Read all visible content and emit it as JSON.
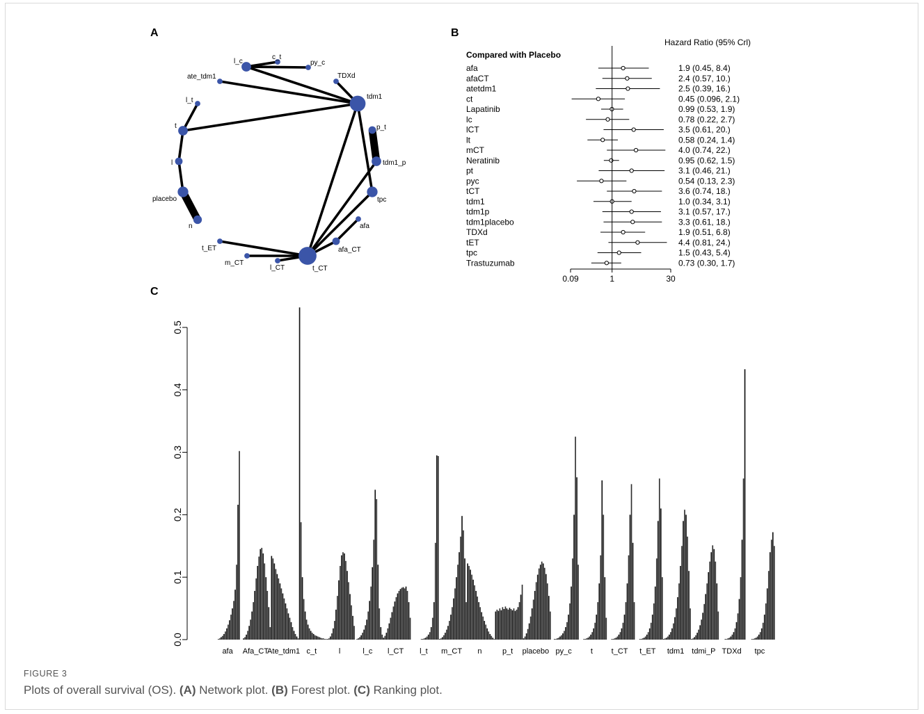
{
  "caption": {
    "figure_label": "FIGURE 3",
    "text_intro": "Plots of overall survival (OS). ",
    "parts": [
      {
        "label": "(A)",
        "text": " Network plot. "
      },
      {
        "label": "(B)",
        "text": " Forest plot. "
      },
      {
        "label": "(C)",
        "text": " Ranking plot."
      }
    ]
  },
  "panel_labels": {
    "a": "A",
    "b": "B",
    "c": "C"
  },
  "chart_data": [
    {
      "type": "network",
      "panel": "A",
      "node_color": "#3b55a8",
      "nodes": [
        {
          "id": "l_c",
          "label": "l_c",
          "weight": 3
        },
        {
          "id": "c_t",
          "label": "c_t",
          "weight": 1
        },
        {
          "id": "py_c",
          "label": "py_c",
          "weight": 1
        },
        {
          "id": "ate_tdm1",
          "label": "ate_tdm1",
          "weight": 1
        },
        {
          "id": "TDXd",
          "label": "TDXd",
          "weight": 1
        },
        {
          "id": "tdm1",
          "label": "tdm1",
          "weight": 6
        },
        {
          "id": "l_t",
          "label": "l_t",
          "weight": 1
        },
        {
          "id": "t",
          "label": "t",
          "weight": 3
        },
        {
          "id": "p_t",
          "label": "p_t",
          "weight": 2
        },
        {
          "id": "tdm1_p",
          "label": "tdm1_p",
          "weight": 3
        },
        {
          "id": "l",
          "label": "l",
          "weight": 2
        },
        {
          "id": "placebo",
          "label": "placebo",
          "weight": 3.5
        },
        {
          "id": "tpc",
          "label": "tpc",
          "weight": 3.5
        },
        {
          "id": "afa",
          "label": "afa",
          "weight": 1
        },
        {
          "id": "n",
          "label": "n",
          "weight": 2.5
        },
        {
          "id": "afa_CT",
          "label": "afa_CT",
          "weight": 2
        },
        {
          "id": "t_ET",
          "label": "t_ET",
          "weight": 1
        },
        {
          "id": "m_CT",
          "label": "m_CT",
          "weight": 1
        },
        {
          "id": "l_CT",
          "label": "l_CT",
          "weight": 1
        },
        {
          "id": "t_CT",
          "label": "t_CT",
          "weight": 7
        }
      ],
      "edges": [
        {
          "from": "l_c",
          "to": "c_t",
          "weight": 1
        },
        {
          "from": "l_c",
          "to": "py_c",
          "weight": 1
        },
        {
          "from": "l_c",
          "to": "tdm1",
          "weight": 1
        },
        {
          "from": "ate_tdm1",
          "to": "tdm1",
          "weight": 1
        },
        {
          "from": "TDXd",
          "to": "tdm1",
          "weight": 1
        },
        {
          "from": "t",
          "to": "tdm1",
          "weight": 1
        },
        {
          "from": "tdm1",
          "to": "tpc",
          "weight": 1
        },
        {
          "from": "tdm1",
          "to": "t_CT",
          "weight": 1
        },
        {
          "from": "p_t",
          "to": "tdm1_p",
          "weight": 3
        },
        {
          "from": "l_t",
          "to": "t",
          "weight": 1
        },
        {
          "from": "t",
          "to": "l",
          "weight": 1
        },
        {
          "from": "l",
          "to": "placebo",
          "weight": 1
        },
        {
          "from": "placebo",
          "to": "n",
          "weight": 3
        },
        {
          "from": "tdm1_p",
          "to": "t_CT",
          "weight": 1
        },
        {
          "from": "tpc",
          "to": "t_CT",
          "weight": 1
        },
        {
          "from": "afa",
          "to": "afa_CT",
          "weight": 1
        },
        {
          "from": "afa_CT",
          "to": "t_CT",
          "weight": 1
        },
        {
          "from": "t_ET",
          "to": "t_CT",
          "weight": 1
        },
        {
          "from": "m_CT",
          "to": "t_CT",
          "weight": 1
        },
        {
          "from": "l_CT",
          "to": "t_CT",
          "weight": 1
        }
      ]
    },
    {
      "type": "forest",
      "panel": "B",
      "title": "Hazard Ratio (95% Crl)",
      "subtitle": "Compared with Placebo",
      "scale": "log",
      "xlim": [
        0.09,
        30
      ],
      "xticks": [
        "0.09",
        "1",
        "30"
      ],
      "rows": [
        {
          "label": "afa",
          "hr": 1.9,
          "lo": 0.45,
          "hi": 8.4,
          "text": "1.9 (0.45, 8.4)"
        },
        {
          "label": "afaCT",
          "hr": 2.4,
          "lo": 0.57,
          "hi": 10.0,
          "text": "2.4 (0.57, 10.)"
        },
        {
          "label": "atetdm1",
          "hr": 2.5,
          "lo": 0.39,
          "hi": 16.0,
          "text": "2.5 (0.39, 16.)"
        },
        {
          "label": "ct",
          "hr": 0.45,
          "lo": 0.096,
          "hi": 2.1,
          "text": "0.45 (0.096, 2.1)"
        },
        {
          "label": "Lapatinib",
          "hr": 0.99,
          "lo": 0.53,
          "hi": 1.9,
          "text": "0.99 (0.53, 1.9)"
        },
        {
          "label": "lc",
          "hr": 0.78,
          "lo": 0.22,
          "hi": 2.7,
          "text": "0.78 (0.22, 2.7)"
        },
        {
          "label": "lCT",
          "hr": 3.5,
          "lo": 0.61,
          "hi": 20.0,
          "text": "3.5 (0.61, 20.)"
        },
        {
          "label": "lt",
          "hr": 0.58,
          "lo": 0.24,
          "hi": 1.4,
          "text": "0.58 (0.24, 1.4)"
        },
        {
          "label": "mCT",
          "hr": 4.0,
          "lo": 0.74,
          "hi": 22.0,
          "text": "4.0 (0.74, 22.)"
        },
        {
          "label": "Neratinib",
          "hr": 0.95,
          "lo": 0.62,
          "hi": 1.5,
          "text": "0.95 (0.62, 1.5)"
        },
        {
          "label": "pt",
          "hr": 3.1,
          "lo": 0.46,
          "hi": 21.0,
          "text": "3.1 (0.46,  21.)"
        },
        {
          "label": "pyc",
          "hr": 0.54,
          "lo": 0.13,
          "hi": 2.3,
          "text": "0.54 (0.13, 2.3)"
        },
        {
          "label": "tCT",
          "hr": 3.6,
          "lo": 0.74,
          "hi": 18.0,
          "text": "3.6 (0.74,  18.)"
        },
        {
          "label": "tdm1",
          "hr": 1.0,
          "lo": 0.34,
          "hi": 3.1,
          "text": "1.0 (0.34, 3.1)"
        },
        {
          "label": "tdm1p",
          "hr": 3.1,
          "lo": 0.57,
          "hi": 17.0,
          "text": "3.1 (0.57,  17.)"
        },
        {
          "label": "tdm1placebo",
          "hr": 3.3,
          "lo": 0.61,
          "hi": 18.0,
          "text": "3.3 (0.61, 18.)"
        },
        {
          "label": "TDXd",
          "hr": 1.9,
          "lo": 0.51,
          "hi": 6.8,
          "text": "1.9 (0.51, 6.8)"
        },
        {
          "label": "tET",
          "hr": 4.4,
          "lo": 0.81,
          "hi": 24.0,
          "text": "4.4 (0.81, 24.)"
        },
        {
          "label": "tpc",
          "hr": 1.5,
          "lo": 0.43,
          "hi": 5.4,
          "text": "1.5 (0.43, 5.4)"
        },
        {
          "label": "Trastuzumab",
          "hr": 0.73,
          "lo": 0.3,
          "hi": 1.7,
          "text": "0.73 (0.30, 1.7)"
        }
      ]
    },
    {
      "type": "bar",
      "panel": "C",
      "ylim": [
        0,
        0.53
      ],
      "yticks": [
        "0.0",
        "0.1",
        "0.2",
        "0.3",
        "0.4",
        "0.5"
      ],
      "bars_per_group": 20,
      "groups": [
        {
          "label": "afa",
          "values": [
            0.0,
            0.0,
            0.001,
            0.002,
            0.004,
            0.006,
            0.009,
            0.013,
            0.018,
            0.024,
            0.031,
            0.04,
            0.05,
            0.062,
            0.08,
            0.12,
            0.216,
            0.302,
            0.0,
            0.0
          ]
        },
        {
          "label": "Afa_CT",
          "values": [
            0.002,
            0.004,
            0.008,
            0.014,
            0.022,
            0.032,
            0.045,
            0.06,
            0.078,
            0.098,
            0.118,
            0.133,
            0.145,
            0.147,
            0.138,
            0.122,
            0.1,
            0.078,
            0.052,
            0.02
          ]
        },
        {
          "label": "Ate_tdm1",
          "values": [
            0.134,
            0.13,
            0.122,
            0.113,
            0.105,
            0.098,
            0.09,
            0.082,
            0.074,
            0.066,
            0.058,
            0.05,
            0.042,
            0.035,
            0.028,
            0.02,
            0.014,
            0.009,
            0.005,
            0.002
          ]
        },
        {
          "label": "c_t",
          "values": [
            0.532,
            0.188,
            0.1,
            0.065,
            0.045,
            0.032,
            0.024,
            0.018,
            0.014,
            0.011,
            0.009,
            0.007,
            0.006,
            0.005,
            0.004,
            0.003,
            0.002,
            0.002,
            0.001,
            0.001
          ]
        },
        {
          "label": "l",
          "values": [
            0.001,
            0.002,
            0.005,
            0.01,
            0.018,
            0.03,
            0.048,
            0.07,
            0.095,
            0.118,
            0.135,
            0.14,
            0.138,
            0.126,
            0.11,
            0.092,
            0.073,
            0.055,
            0.038,
            0.022
          ]
        },
        {
          "label": "l_c",
          "values": [
            0.0,
            0.001,
            0.002,
            0.004,
            0.007,
            0.011,
            0.016,
            0.023,
            0.032,
            0.045,
            0.062,
            0.085,
            0.116,
            0.16,
            0.24,
            0.225,
            0.12,
            0.05,
            0.02,
            0.008
          ]
        },
        {
          "label": "l_CT",
          "values": [
            0.003,
            0.006,
            0.011,
            0.018,
            0.026,
            0.035,
            0.044,
            0.053,
            0.061,
            0.068,
            0.074,
            0.078,
            0.081,
            0.083,
            0.084,
            0.082,
            0.085,
            0.078,
            0.06,
            0.035
          ]
        },
        {
          "label": "l_t",
          "values": [
            0.0,
            0.0,
            0.0,
            0.0,
            0.0,
            0.0,
            0.0,
            0.001,
            0.001,
            0.002,
            0.003,
            0.005,
            0.008,
            0.012,
            0.02,
            0.035,
            0.06,
            0.155,
            0.295,
            0.294
          ]
        },
        {
          "label": "m_CT",
          "values": [
            0.001,
            0.002,
            0.004,
            0.007,
            0.011,
            0.016,
            0.022,
            0.03,
            0.04,
            0.052,
            0.066,
            0.082,
            0.1,
            0.12,
            0.14,
            0.165,
            0.198,
            0.175,
            0.13,
            0.06
          ]
        },
        {
          "label": "n",
          "values": [
            0.122,
            0.118,
            0.112,
            0.104,
            0.096,
            0.087,
            0.078,
            0.069,
            0.06,
            0.052,
            0.044,
            0.037,
            0.03,
            0.024,
            0.018,
            0.013,
            0.009,
            0.006,
            0.003,
            0.001
          ]
        },
        {
          "label": "p_t",
          "values": [
            0.045,
            0.048,
            0.046,
            0.05,
            0.047,
            0.052,
            0.049,
            0.053,
            0.05,
            0.048,
            0.051,
            0.049,
            0.047,
            0.05,
            0.046,
            0.048,
            0.052,
            0.06,
            0.072,
            0.088
          ]
        },
        {
          "label": "placebo",
          "values": [
            0.002,
            0.005,
            0.01,
            0.017,
            0.026,
            0.037,
            0.05,
            0.064,
            0.078,
            0.092,
            0.104,
            0.114,
            0.12,
            0.125,
            0.122,
            0.115,
            0.105,
            0.09,
            0.07,
            0.045
          ]
        },
        {
          "label": "py_c",
          "values": [
            0.0,
            0.0,
            0.001,
            0.001,
            0.002,
            0.003,
            0.005,
            0.007,
            0.01,
            0.014,
            0.02,
            0.028,
            0.04,
            0.058,
            0.085,
            0.13,
            0.2,
            0.325,
            0.26,
            0.12
          ]
        },
        {
          "label": "t",
          "values": [
            0.0,
            0.0,
            0.0,
            0.001,
            0.001,
            0.002,
            0.003,
            0.005,
            0.008,
            0.012,
            0.018,
            0.027,
            0.04,
            0.06,
            0.09,
            0.135,
            0.255,
            0.2,
            0.1,
            0.035
          ]
        },
        {
          "label": "t_CT",
          "values": [
            0.0,
            0.0,
            0.0,
            0.001,
            0.001,
            0.002,
            0.003,
            0.005,
            0.008,
            0.012,
            0.018,
            0.027,
            0.04,
            0.06,
            0.09,
            0.135,
            0.2,
            0.249,
            0.155,
            0.06
          ]
        },
        {
          "label": "t_ET",
          "values": [
            0.0,
            0.0,
            0.0,
            0.001,
            0.001,
            0.002,
            0.003,
            0.005,
            0.008,
            0.012,
            0.018,
            0.027,
            0.04,
            0.058,
            0.085,
            0.13,
            0.19,
            0.258,
            0.21,
            0.1
          ]
        },
        {
          "label": "tdm1",
          "values": [
            0.001,
            0.002,
            0.003,
            0.005,
            0.008,
            0.012,
            0.018,
            0.026,
            0.036,
            0.05,
            0.068,
            0.09,
            0.118,
            0.15,
            0.19,
            0.208,
            0.2,
            0.165,
            0.11,
            0.05
          ]
        },
        {
          "label": "tdmi_P",
          "values": [
            0.001,
            0.002,
            0.004,
            0.007,
            0.011,
            0.016,
            0.023,
            0.032,
            0.043,
            0.057,
            0.073,
            0.09,
            0.108,
            0.125,
            0.14,
            0.151,
            0.145,
            0.125,
            0.09,
            0.045
          ]
        },
        {
          "label": "TDXd",
          "values": [
            0.0,
            0.0,
            0.0,
            0.0,
            0.001,
            0.001,
            0.002,
            0.003,
            0.005,
            0.008,
            0.012,
            0.018,
            0.028,
            0.042,
            0.065,
            0.1,
            0.16,
            0.258,
            0.433,
            0.0
          ]
        },
        {
          "label": "tpc",
          "values": [
            0.0,
            0.0,
            0.0,
            0.001,
            0.001,
            0.002,
            0.003,
            0.005,
            0.008,
            0.012,
            0.018,
            0.027,
            0.04,
            0.058,
            0.082,
            0.11,
            0.14,
            0.16,
            0.172,
            0.15
          ]
        }
      ]
    }
  ]
}
